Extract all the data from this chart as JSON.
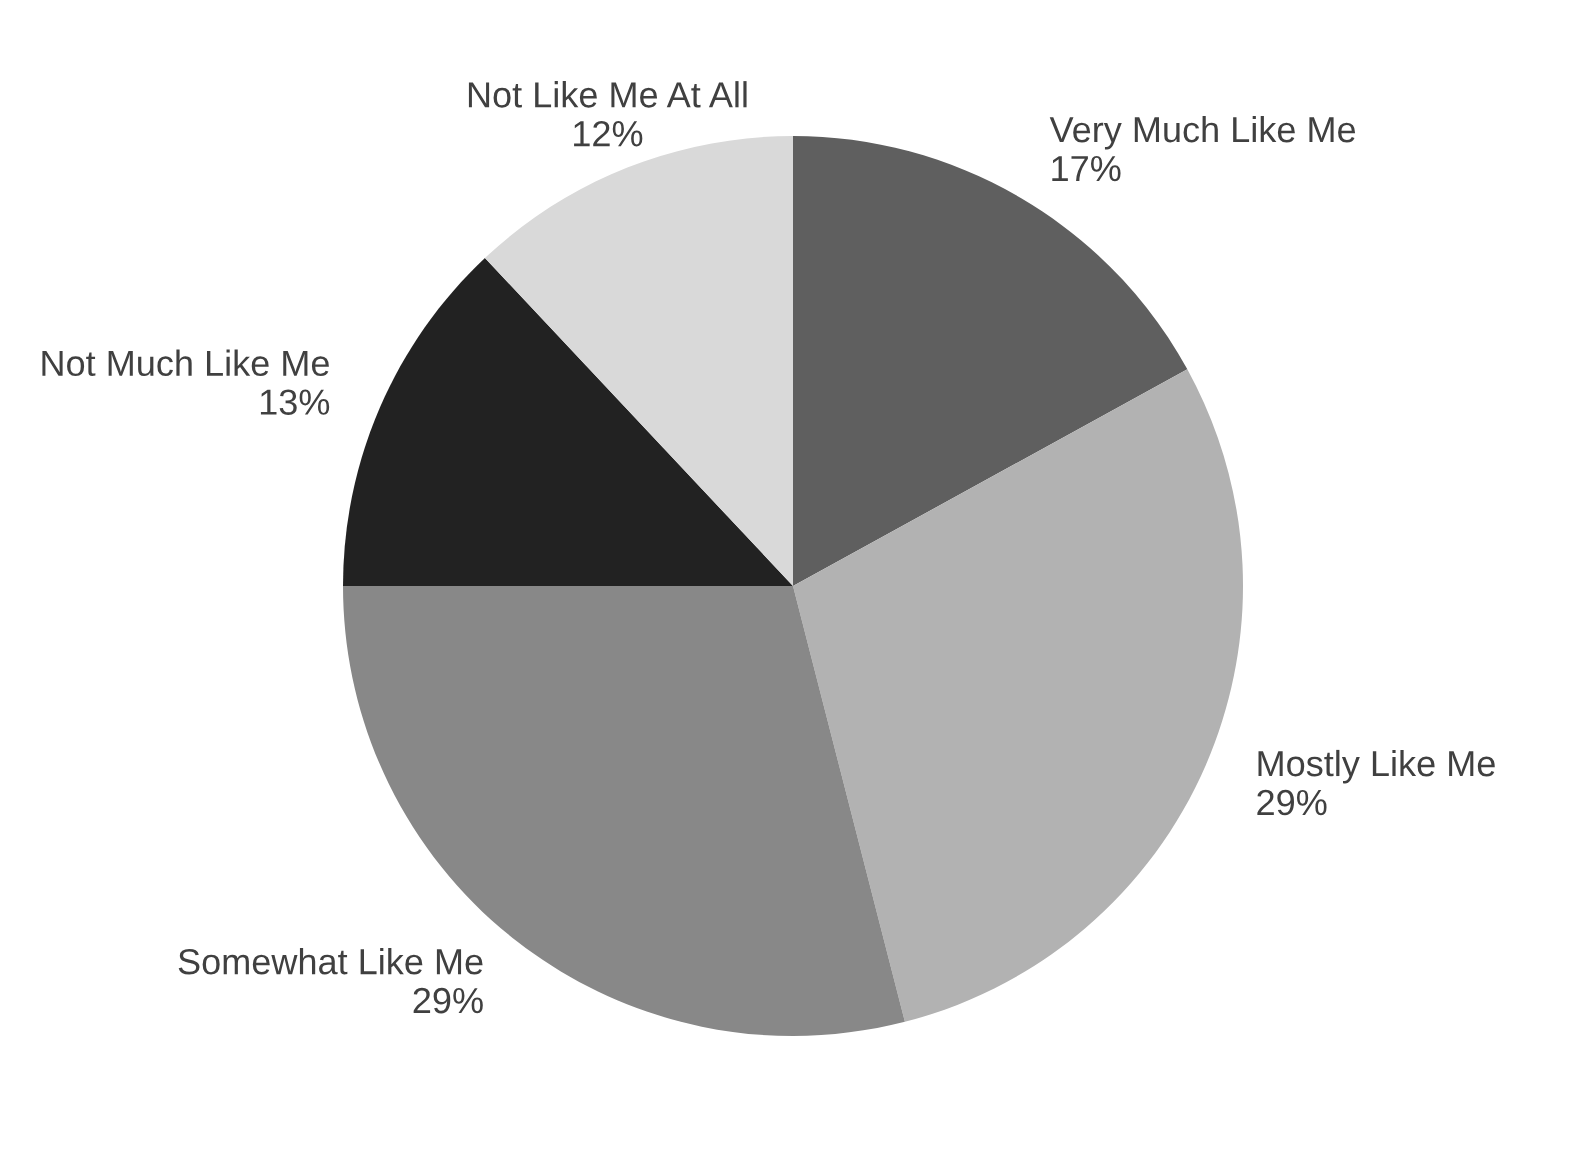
{
  "chart_data": {
    "type": "pie",
    "categories": [
      "Very Much Like Me",
      "Mostly Like Me",
      "Somewhat Like Me",
      "Not Much Like Me",
      "Not Like Me At All"
    ],
    "values": [
      17,
      29,
      29,
      13,
      12
    ],
    "value_labels": [
      "17%",
      "29%",
      "29%",
      "13%",
      "12%"
    ],
    "colors": [
      "#5f5f5f",
      "#b2b2b2",
      "#888888",
      "#222222",
      "#d9d9d9"
    ],
    "legend": false
  }
}
